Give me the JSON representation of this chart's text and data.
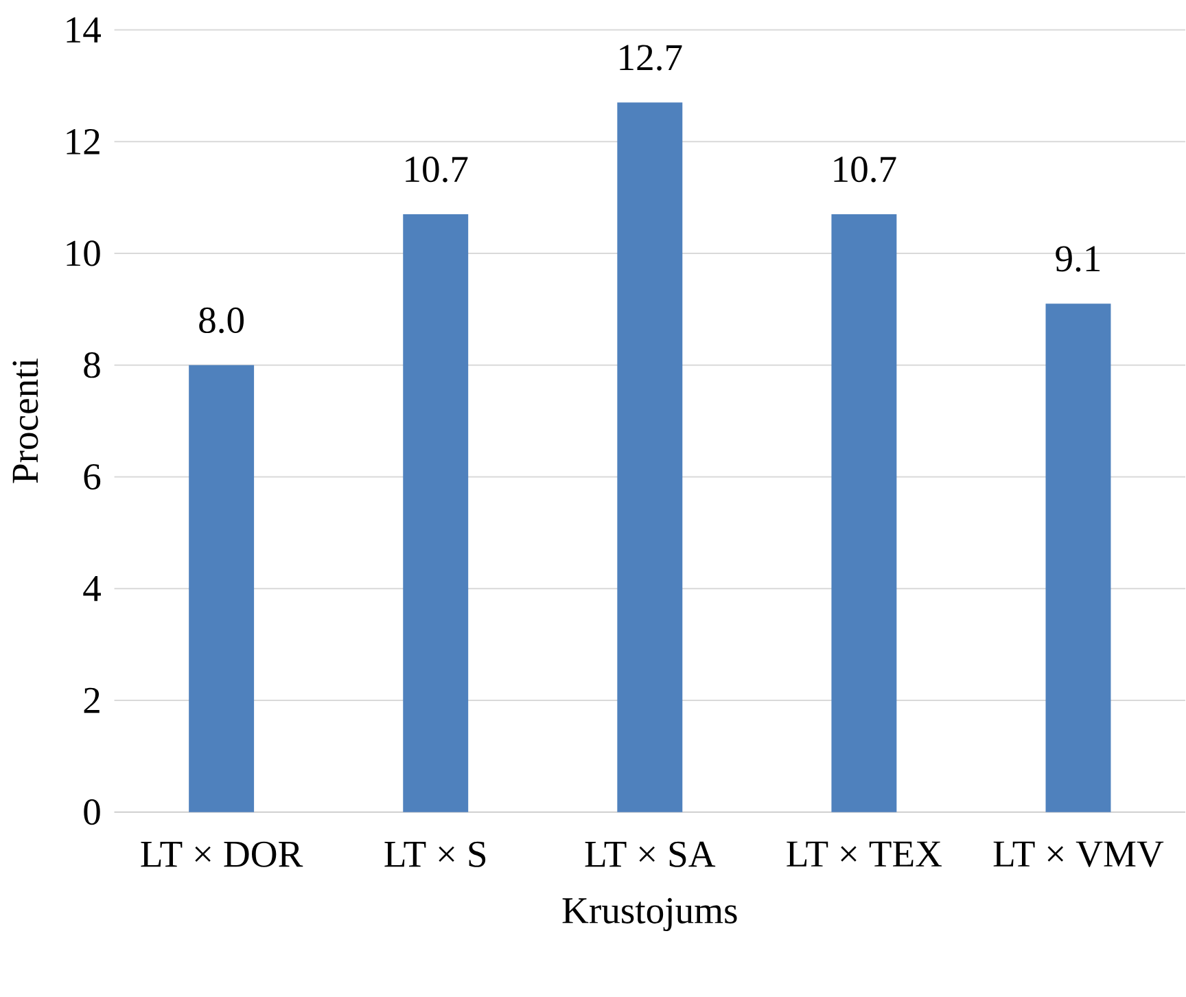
{
  "chart_data": {
    "type": "bar",
    "xlabel": "Krustojums",
    "ylabel": "Procenti",
    "categories": [
      "LT × DOR",
      "LT × S",
      "LT × SA",
      "LT × TEX",
      "LT × VMV"
    ],
    "values": [
      8.0,
      10.7,
      12.7,
      10.7,
      9.1
    ],
    "value_labels": [
      "8.0",
      "10.7",
      "12.7",
      "10.7",
      "9.1"
    ],
    "color": "#4f81bd",
    "ylim": [
      0,
      14
    ],
    "yticks": [
      0,
      2,
      4,
      6,
      8,
      10,
      12,
      14
    ],
    "grid": "y"
  }
}
